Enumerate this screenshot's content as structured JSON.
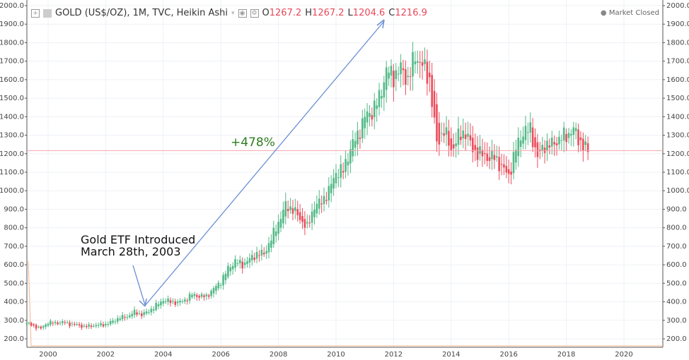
{
  "header": {
    "symbol": "GOLD (US$/OZ), 1M, TVC, Heikin Ashi",
    "o_label": "O",
    "o": "1267.2",
    "h_label": "H",
    "h": "1267.2",
    "l_label": "L",
    "l": "1204.6",
    "c_label": "C",
    "c": "1216.9",
    "status": "Market Closed"
  },
  "annotations": {
    "pct": "+478%",
    "etf_line1": "Gold ETF Introduced",
    "etf_line2": "March 28th, 2003"
  },
  "colors": {
    "up": "#53b987",
    "down": "#eb4d5c",
    "arrow": "#6b8fd4",
    "lastline": "#f3a3ab"
  },
  "chart_data": {
    "type": "candlestick",
    "title": "GOLD (US$/OZ), 1M, TVC, Heikin Ashi",
    "ylim": [
      200,
      2000
    ],
    "xlim": [
      1999.25,
      2021.2
    ],
    "yticks": [
      "2000.0",
      "1900.0",
      "1800.0",
      "1700.0",
      "1600.0",
      "1500.0",
      "1400.0",
      "1300.0",
      "1200.0",
      "1100.0",
      "1000.0",
      "900.0",
      "800.0",
      "700.0",
      "600.0",
      "500.0",
      "400.0",
      "300.0",
      "200.0"
    ],
    "xticks": [
      "2000",
      "2002",
      "2004",
      "2006",
      "2008",
      "2010",
      "2012",
      "2014",
      "2016",
      "2018",
      "2020"
    ],
    "last_close": 1216.9,
    "quarter_start": 1999.25,
    "quarterly_close": [
      285,
      270,
      255,
      290,
      285,
      290,
      280,
      275,
      265,
      270,
      275,
      278,
      295,
      315,
      320,
      345,
      330,
      350,
      380,
      410,
      400,
      395,
      410,
      440,
      430,
      430,
      470,
      510,
      580,
      620,
      600,
      630,
      660,
      660,
      740,
      830,
      920,
      900,
      850,
      800,
      920,
      940,
      1000,
      1100,
      1110,
      1230,
      1300,
      1400,
      1430,
      1500,
      1650,
      1620,
      1660,
      1600,
      1730,
      1680,
      1600,
      1250,
      1330,
      1220,
      1290,
      1320,
      1220,
      1200,
      1180,
      1180,
      1130,
      1080,
      1230,
      1320,
      1330,
      1180,
      1250,
      1250,
      1280,
      1300,
      1330,
      1260,
      1210
    ]
  }
}
